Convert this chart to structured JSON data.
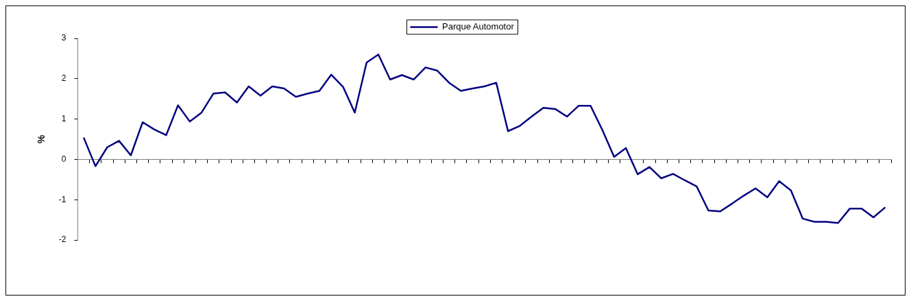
{
  "chart_data": {
    "type": "line",
    "ylabel": "%",
    "legend": "top",
    "marker": "none",
    "line_style": "solid",
    "ylim": [
      -2,
      3
    ],
    "yticks": [
      -2,
      -1,
      0,
      1,
      2,
      3
    ],
    "categories": [
      null,
      null,
      null,
      null,
      null,
      null,
      null,
      null,
      null,
      null,
      null,
      null,
      null,
      null,
      null,
      null,
      null,
      null,
      null,
      null,
      null,
      null,
      null,
      null,
      null,
      null,
      null,
      null,
      null,
      null,
      null,
      null,
      null,
      null,
      null,
      null,
      null,
      null,
      null,
      null,
      null,
      null,
      null,
      null,
      null,
      null,
      null,
      null,
      null,
      null,
      null,
      null,
      null,
      null,
      null,
      null,
      null,
      null,
      null,
      null,
      null,
      null,
      null,
      null,
      null,
      null,
      null,
      null,
      null
    ],
    "series": [
      {
        "name": "Parque Automotor",
        "color": "#000080",
        "values": [
          0.54,
          -0.17,
          0.3,
          0.46,
          0.1,
          0.92,
          0.74,
          0.6,
          1.34,
          0.94,
          1.16,
          1.63,
          1.66,
          1.41,
          1.81,
          1.58,
          1.81,
          1.76,
          1.55,
          1.63,
          1.7,
          2.1,
          1.8,
          1.16,
          2.4,
          2.6,
          1.98,
          2.09,
          1.98,
          2.28,
          2.2,
          1.9,
          1.7,
          1.76,
          1.81,
          1.9,
          0.7,
          0.83,
          1.06,
          1.28,
          1.25,
          1.06,
          1.33,
          1.33,
          0.73,
          0.06,
          0.28,
          -0.37,
          -0.19,
          -0.47,
          -0.36,
          -0.52,
          -0.67,
          -1.27,
          -1.29,
          -1.1,
          -0.9,
          -0.72,
          -0.94,
          -0.54,
          -0.77,
          -1.47,
          -1.55,
          -1.55,
          -1.58,
          -1.22,
          -1.22,
          -1.44,
          -1.19
        ]
      }
    ]
  }
}
